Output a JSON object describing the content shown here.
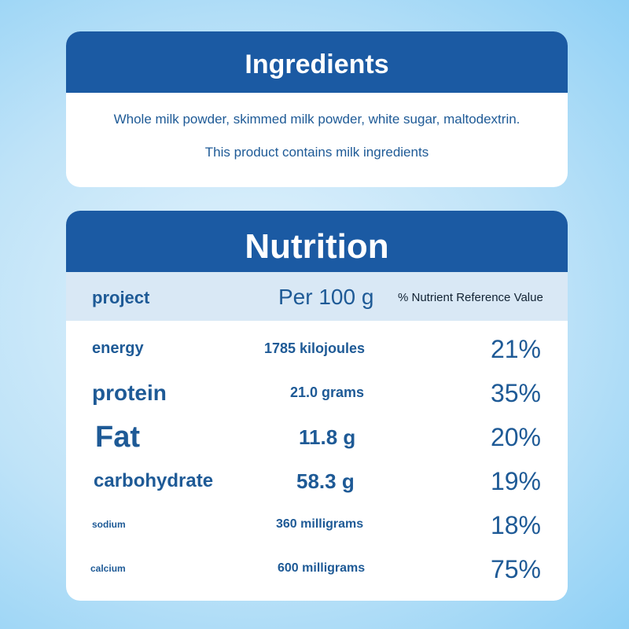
{
  "ingredients": {
    "title": "Ingredients",
    "text": "Whole milk powder, skimmed milk powder, white sugar, maltodextrin.",
    "note": "This product contains milk ingredients"
  },
  "nutrition": {
    "title": "Nutrition",
    "header": [
      "project",
      "Per 100 g",
      "% Nutrient Reference Value"
    ],
    "rows": [
      [
        "energy",
        "1785 kilojoules",
        "21%"
      ],
      [
        "protein",
        "21.0 grams",
        "35%"
      ],
      [
        "Fat",
        "11.8 g",
        "20%"
      ],
      [
        "carbohydrate",
        "58.3 g",
        "19%"
      ],
      [
        "sodium",
        "360 milligrams",
        "18%"
      ],
      [
        "calcium",
        "600 milligrams",
        "75%"
      ]
    ]
  }
}
